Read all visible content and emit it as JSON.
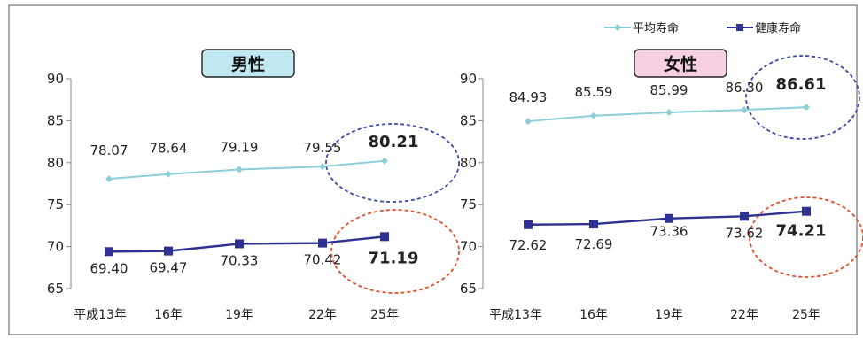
{
  "legend": {
    "avg_label": "平均寿命",
    "healthy_label": "健康寿命"
  },
  "colors": {
    "avg": "#8ccfd8",
    "healthy": "#2e3192",
    "male_badge": "#bfe8f0",
    "female_badge": "#f6cfe3",
    "highlight_blue": "#3a4aa8",
    "highlight_red": "#e0502a"
  },
  "chart_data": [
    {
      "type": "line",
      "title": "男性",
      "categories": [
        "平成13年",
        "16年",
        "19年",
        "22年",
        "25年"
      ],
      "ylim": [
        65,
        90
      ],
      "yticks": [
        "90",
        "85",
        "80",
        "75",
        "70",
        "65"
      ],
      "series": [
        {
          "name": "平均寿命",
          "values": [
            78.07,
            78.64,
            79.19,
            79.55,
            80.21
          ],
          "labels": [
            "78.07",
            "78.64",
            "79.19",
            "79.55",
            "80.21"
          ]
        },
        {
          "name": "健康寿命",
          "values": [
            69.4,
            69.47,
            70.33,
            70.42,
            71.19
          ],
          "labels": [
            "69.40",
            "69.47",
            "70.33",
            "70.42",
            "71.19"
          ]
        }
      ],
      "grid": false,
      "legend_position": "top-right"
    },
    {
      "type": "line",
      "title": "女性",
      "categories": [
        "平成13年",
        "16年",
        "19年",
        "22年",
        "25年"
      ],
      "ylim": [
        65,
        90
      ],
      "yticks": [
        "90",
        "85",
        "80",
        "75",
        "70",
        "65"
      ],
      "series": [
        {
          "name": "平均寿命",
          "values": [
            84.93,
            85.59,
            85.99,
            86.3,
            86.61
          ],
          "labels": [
            "84.93",
            "85.59",
            "85.99",
            "86.30",
            "86.61"
          ]
        },
        {
          "name": "健康寿命",
          "values": [
            72.62,
            72.69,
            73.36,
            73.62,
            74.21
          ],
          "labels": [
            "72.62",
            "72.69",
            "73.36",
            "73.62",
            "74.21"
          ]
        }
      ],
      "grid": false,
      "legend_position": "top-right"
    }
  ]
}
